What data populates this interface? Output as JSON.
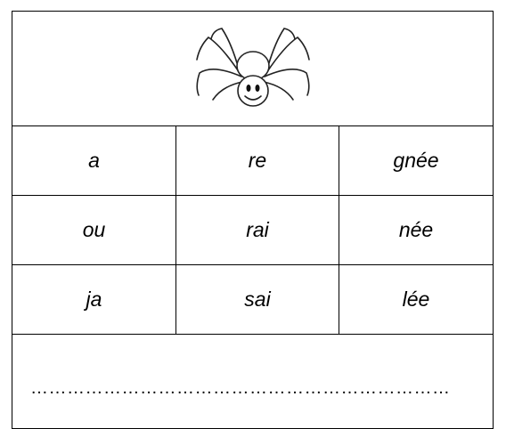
{
  "table": {
    "rows": [
      [
        "a",
        "re",
        "gnée"
      ],
      [
        "ou",
        "rai",
        "née"
      ],
      [
        "ja",
        "sai",
        "lée"
      ]
    ]
  },
  "answer_line": "……………………………………………………………"
}
